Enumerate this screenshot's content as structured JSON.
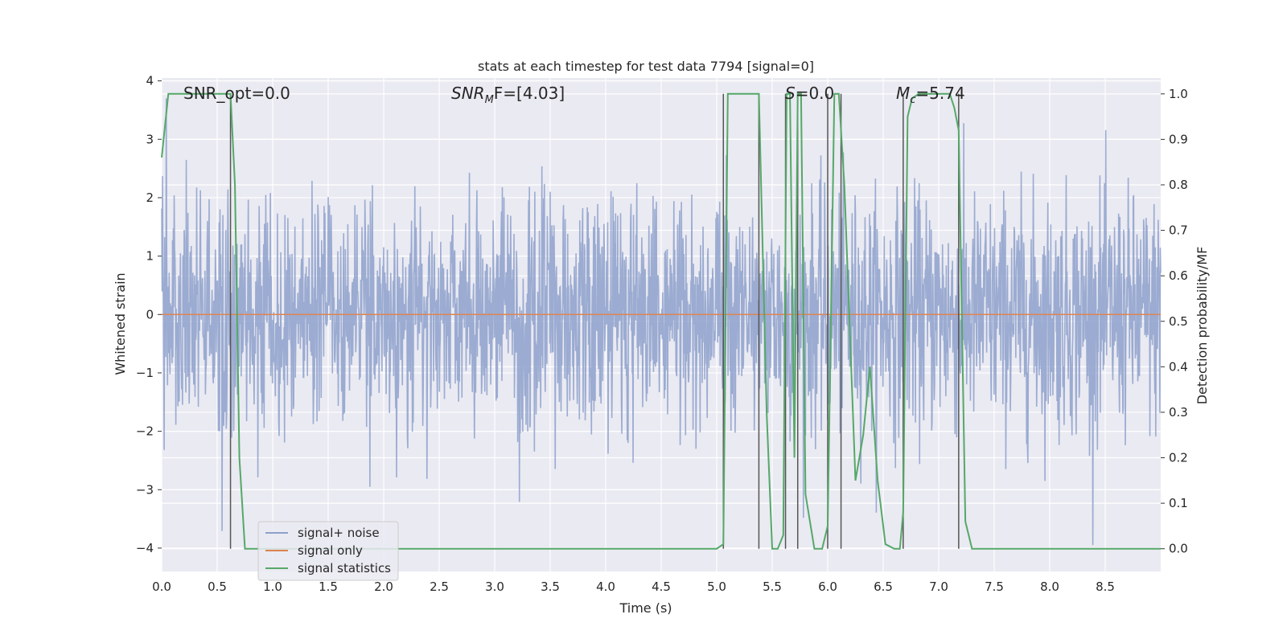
{
  "chart_data": {
    "type": "line",
    "title": "stats at each timestep for test data 7794 [signal=0]",
    "xlabel": "Time (s)",
    "ylabel": "Whitened strain",
    "y2label": "Detection probability/MF",
    "xlim": [
      0.0,
      9.0
    ],
    "ylim": [
      -4.4,
      4.05
    ],
    "y2lim": [
      -0.05,
      1.035
    ],
    "xticks": [
      "0.0",
      "0.5",
      "1.0",
      "1.5",
      "2.0",
      "2.5",
      "3.0",
      "3.5",
      "4.0",
      "4.5",
      "5.0",
      "5.5",
      "6.0",
      "6.5",
      "7.0",
      "7.5",
      "8.0",
      "8.5"
    ],
    "yticks": [
      "4",
      "3",
      "2",
      "1",
      "0",
      "−1",
      "−2",
      "−3",
      "−4"
    ],
    "y2ticks": [
      "1.0",
      "0.9",
      "0.8",
      "0.7",
      "0.6",
      "0.5",
      "0.4",
      "0.3",
      "0.2",
      "0.1",
      "0.0"
    ],
    "grid": true,
    "legend_position": "lower-left",
    "annotations": {
      "snr_opt": "SNR_opt=0.0",
      "snr_mf_base": "SNR",
      "snr_mf_sub": "M",
      "snr_mf_rest": "F=[4.03]",
      "s_var": "S",
      "s_rest": "=0.0",
      "mc_var": "M",
      "mc_sub": "c",
      "mc_rest": "=5.74"
    },
    "series": [
      {
        "name": "signal+ noise",
        "color": "#8da0cb",
        "description_note": "whitened strain noise, amplitude approx ±2.5 with spikes to ±3.7",
        "noise_std": 1.0,
        "noise_n": 2400
      },
      {
        "name": "signal only",
        "color": "#dd8452",
        "x": [
          0.0,
          9.0
        ],
        "y": [
          0.0,
          0.0
        ]
      },
      {
        "name": "signal statistics",
        "color": "#55a868",
        "axis": "right",
        "x": [
          0.0,
          0.06,
          0.12,
          0.2,
          0.3,
          0.4,
          0.5,
          0.6,
          0.62,
          0.66,
          0.7,
          0.75,
          1.0,
          2.0,
          3.0,
          4.0,
          5.0,
          5.06,
          5.1,
          5.2,
          5.3,
          5.38,
          5.45,
          5.5,
          5.55,
          5.6,
          5.63,
          5.66,
          5.7,
          5.73,
          5.76,
          5.8,
          5.88,
          5.95,
          6.0,
          6.06,
          6.1,
          6.15,
          6.25,
          6.32,
          6.38,
          6.45,
          6.52,
          6.6,
          6.65,
          6.68,
          6.72,
          6.76,
          6.82,
          6.9,
          7.0,
          7.1,
          7.14,
          7.18,
          7.24,
          7.3,
          7.5,
          8.0,
          8.5,
          9.0
        ],
        "y": [
          0.86,
          1.0,
          1.0,
          1.0,
          1.0,
          1.0,
          1.0,
          1.0,
          1.0,
          0.8,
          0.2,
          0.0,
          0.0,
          0.0,
          0.0,
          0.0,
          0.0,
          0.01,
          1.0,
          1.0,
          1.0,
          1.0,
          0.3,
          0.0,
          0.0,
          0.03,
          1.0,
          1.0,
          0.2,
          1.0,
          1.0,
          0.12,
          0.0,
          0.0,
          0.05,
          1.0,
          1.0,
          0.8,
          0.15,
          0.25,
          0.4,
          0.15,
          0.01,
          0.0,
          0.0,
          0.08,
          0.95,
          0.99,
          1.0,
          1.0,
          1.0,
          1.0,
          0.97,
          0.92,
          0.06,
          0.0,
          0.0,
          0.0,
          0.0,
          0.0
        ]
      }
    ],
    "vlines_x": [
      0.62,
      5.06,
      5.38,
      5.62,
      5.73,
      6.0,
      6.12,
      6.68,
      7.18
    ]
  }
}
